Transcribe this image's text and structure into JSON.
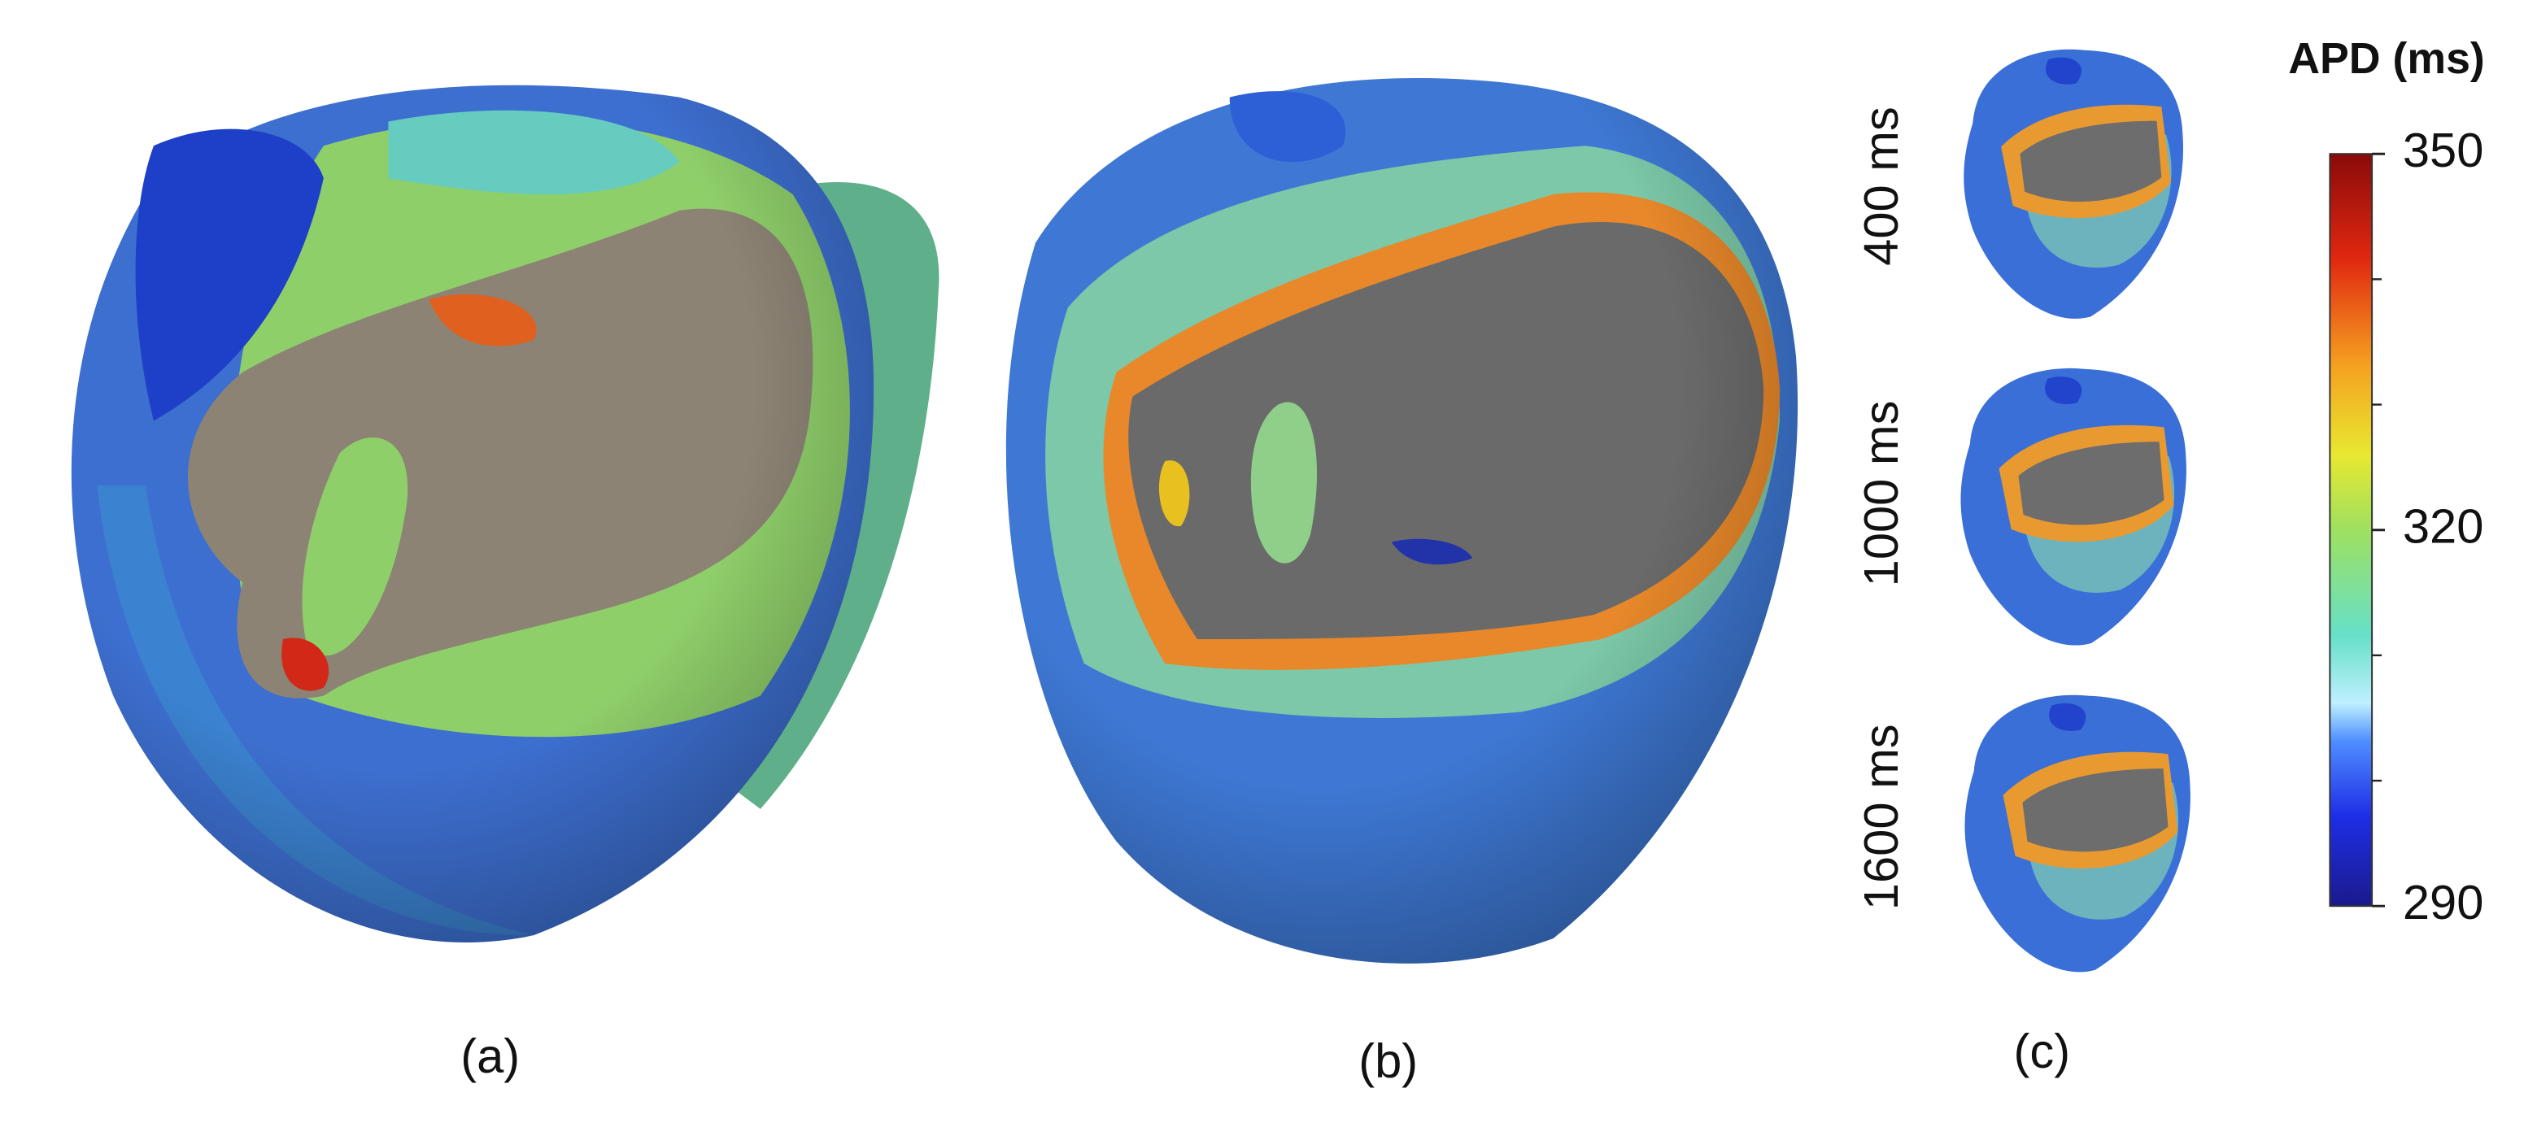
{
  "panels": [
    {
      "label": "(a)"
    },
    {
      "label": "(b)"
    },
    {
      "label": "(c)",
      "rows": [
        "400 ms",
        "1000 ms",
        "1600 ms"
      ]
    }
  ],
  "colorbar": {
    "title": "APD (ms)",
    "lim": [
      290,
      350
    ],
    "ticks": [
      290,
      320,
      350
    ],
    "minor_ticks": [
      300,
      310,
      330,
      340
    ]
  }
}
